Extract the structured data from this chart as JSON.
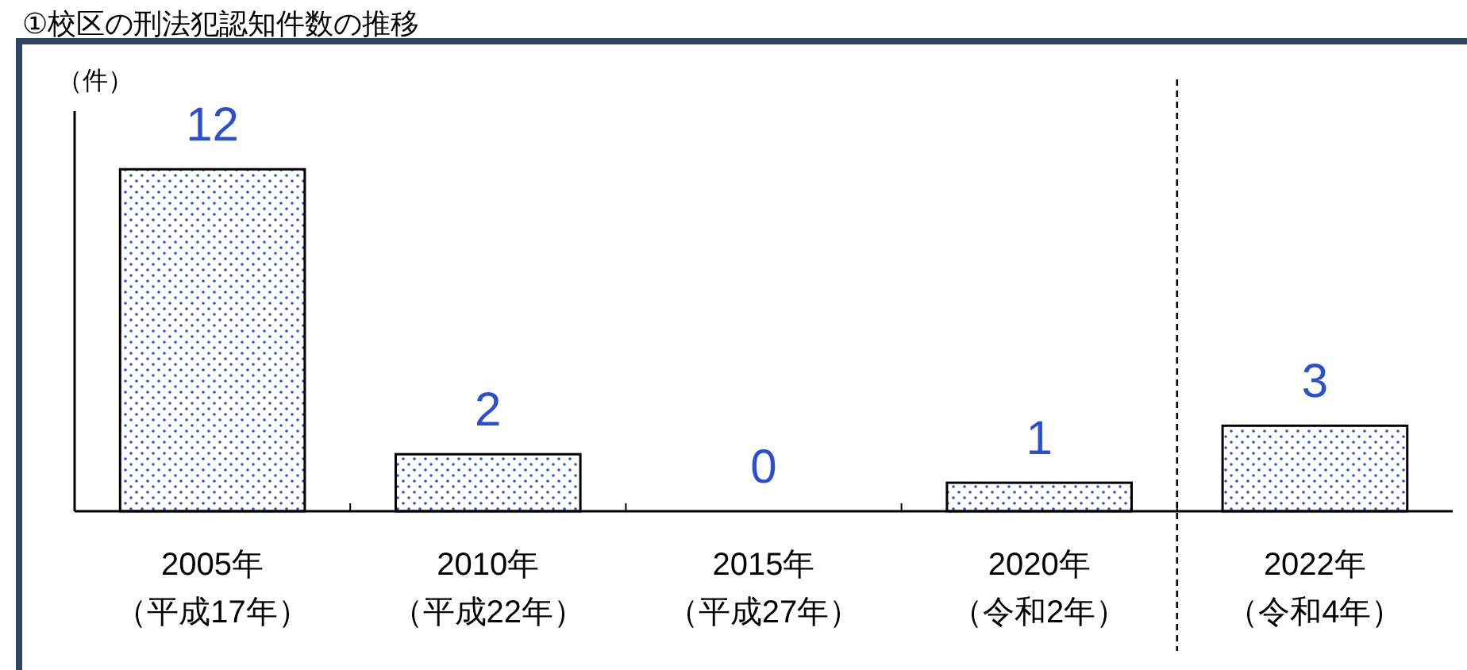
{
  "chart_data": {
    "type": "bar",
    "title": "①校区の刑法犯認知件数の推移",
    "ylabel": "（件）",
    "categories": [
      "2005年（平成17年）",
      "2010年（平成22年）",
      "2015年（平成27年）",
      "2020年（令和2年）",
      "2022年（令和4年）"
    ],
    "values": [
      12,
      2,
      0,
      1,
      3
    ],
    "color": "#000000",
    "data_labels": true
  }
}
